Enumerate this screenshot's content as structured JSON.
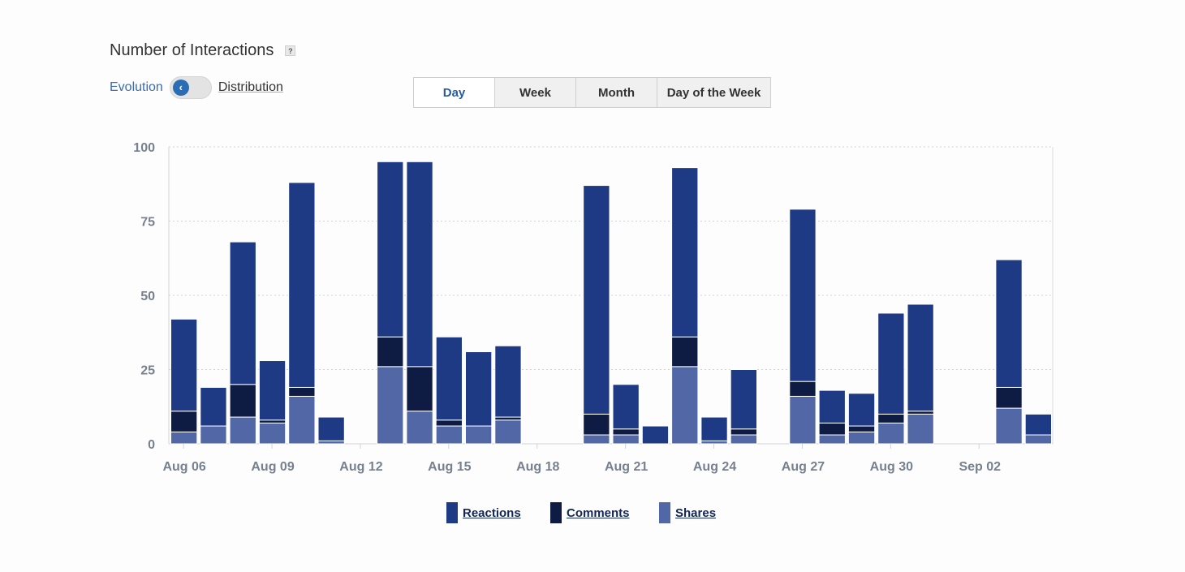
{
  "header": {
    "title": "Number of Interactions",
    "help_icon": "?"
  },
  "toggle": {
    "left_label": "Evolution",
    "right_label": "Distribution",
    "knob_glyph": "‹"
  },
  "period_tabs": [
    {
      "label": "Day",
      "active": true
    },
    {
      "label": "Week",
      "active": false
    },
    {
      "label": "Month",
      "active": false
    },
    {
      "label": "Day of the Week",
      "active": false
    }
  ],
  "colors": {
    "reactions": "#1e3a85",
    "comments": "#0e1c44",
    "shares": "#5268a6",
    "axis_text": "#77808f"
  },
  "chart_data": {
    "type": "bar",
    "stacked": true,
    "ylim": [
      0,
      100
    ],
    "yticks": [
      0,
      25,
      50,
      75,
      100
    ],
    "xtick_labels": [
      "Aug 06",
      "Aug 09",
      "Aug 12",
      "Aug 15",
      "Aug 18",
      "Aug 21",
      "Aug 24",
      "Aug 27",
      "Aug 30",
      "Sep 02"
    ],
    "grid": true,
    "legend_position": "bottom",
    "categories": [
      "Aug 06",
      "Aug 07",
      "Aug 08",
      "Aug 09",
      "Aug 10",
      "Aug 11",
      "Aug 12",
      "Aug 13",
      "Aug 14",
      "Aug 15",
      "Aug 16",
      "Aug 17",
      "Aug 18",
      "Aug 19",
      "Aug 20",
      "Aug 21",
      "Aug 22",
      "Aug 23",
      "Aug 24",
      "Aug 25",
      "Aug 26",
      "Aug 27",
      "Aug 28",
      "Aug 29",
      "Aug 30",
      "Aug 31",
      "Sep 01",
      "Sep 02",
      "Sep 03",
      "Sep 04"
    ],
    "series": [
      {
        "name": "Shares",
        "values": [
          4,
          6,
          9,
          7,
          16,
          1,
          0,
          26,
          11,
          6,
          6,
          8,
          0,
          0,
          3,
          3,
          0,
          26,
          1,
          3,
          0,
          16,
          3,
          4,
          7,
          10,
          0,
          0,
          12,
          3
        ]
      },
      {
        "name": "Comments",
        "values": [
          7,
          0,
          11,
          1,
          3,
          0,
          0,
          10,
          15,
          2,
          0,
          1,
          0,
          0,
          7,
          2,
          0,
          10,
          0,
          2,
          0,
          5,
          4,
          2,
          3,
          1,
          0,
          0,
          7,
          0
        ]
      },
      {
        "name": "Reactions",
        "values": [
          31,
          13,
          48,
          20,
          69,
          8,
          0,
          59,
          69,
          28,
          25,
          24,
          0,
          0,
          77,
          15,
          6,
          57,
          8,
          20,
          0,
          58,
          11,
          11,
          34,
          36,
          0,
          0,
          43,
          7
        ]
      }
    ]
  },
  "legend": [
    {
      "label": "Reactions",
      "color": "#1e3a85"
    },
    {
      "label": "Comments",
      "color": "#0e1c44"
    },
    {
      "label": "Shares",
      "color": "#5268a6"
    }
  ]
}
